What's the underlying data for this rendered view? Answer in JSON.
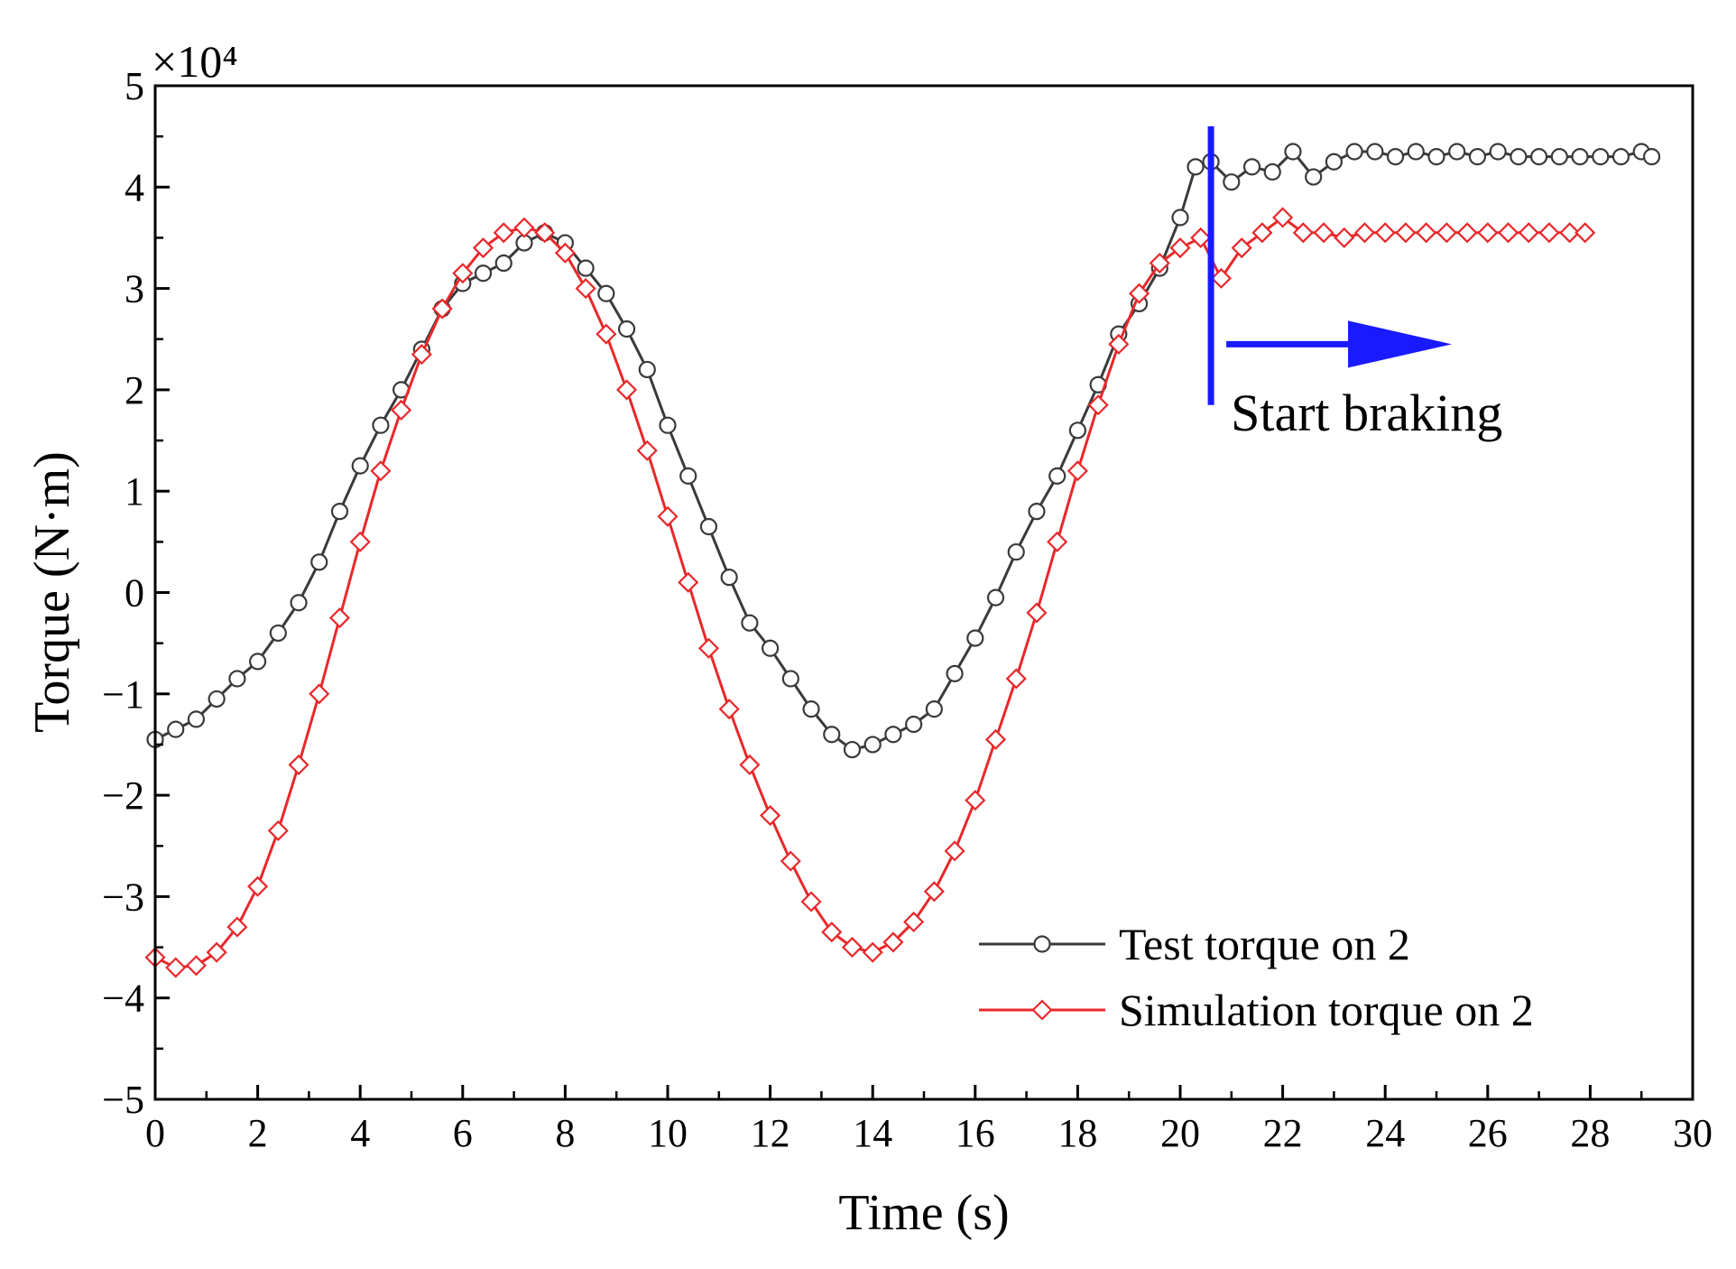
{
  "chart_data": {
    "type": "line",
    "title": "",
    "xlabel": "Time (s)",
    "ylabel": "Torque (N·m)",
    "y_multiplier_label": "×10⁴",
    "xlim": [
      0,
      30
    ],
    "ylim": [
      -5,
      5
    ],
    "x_ticks": [
      0,
      2,
      4,
      6,
      8,
      10,
      12,
      14,
      16,
      18,
      20,
      22,
      24,
      26,
      28,
      30
    ],
    "y_ticks": [
      -5,
      -4,
      -3,
      -2,
      -1,
      0,
      1,
      2,
      3,
      4,
      5
    ],
    "x_tick_labels": [
      "0",
      "2",
      "4",
      "6",
      "8",
      "10",
      "12",
      "14",
      "16",
      "18",
      "20",
      "22",
      "24",
      "26",
      "28",
      "30"
    ],
    "y_tick_labels": [
      "−5",
      "−4",
      "−3",
      "−2",
      "−1",
      "0",
      "1",
      "2",
      "3",
      "4",
      "5"
    ],
    "grid": false,
    "legend_position": "bottom-right",
    "colors": {
      "test": "#3a3a3a",
      "simulation": "#e8282b",
      "annotation": "#1a1aff"
    },
    "series": [
      {
        "name": "Test torque on 2",
        "marker": "circle",
        "x": [
          0.0,
          0.4,
          0.8,
          1.2,
          1.6,
          2.0,
          2.4,
          2.8,
          3.2,
          3.6,
          4.0,
          4.4,
          4.8,
          5.2,
          5.6,
          6.0,
          6.4,
          6.8,
          7.2,
          7.6,
          8.0,
          8.4,
          8.8,
          9.2,
          9.6,
          10.0,
          10.4,
          10.8,
          11.2,
          11.6,
          12.0,
          12.4,
          12.8,
          13.2,
          13.6,
          14.0,
          14.4,
          14.8,
          15.2,
          15.6,
          16.0,
          16.4,
          16.8,
          17.2,
          17.6,
          18.0,
          18.4,
          18.8,
          19.2,
          19.6,
          20.0,
          20.3,
          20.6,
          21.0,
          21.4,
          21.8,
          22.2,
          22.6,
          23.0,
          23.4,
          23.8,
          24.2,
          24.6,
          25.0,
          25.4,
          25.8,
          26.2,
          26.6,
          27.0,
          27.4,
          27.8,
          28.2,
          28.6,
          29.0,
          29.2
        ],
        "y": [
          -1.45,
          -1.35,
          -1.25,
          -1.05,
          -0.85,
          -0.68,
          -0.4,
          -0.1,
          0.3,
          0.8,
          1.25,
          1.65,
          2.0,
          2.4,
          2.8,
          3.05,
          3.15,
          3.25,
          3.45,
          3.55,
          3.45,
          3.2,
          2.95,
          2.6,
          2.2,
          1.65,
          1.15,
          0.65,
          0.15,
          -0.3,
          -0.55,
          -0.85,
          -1.15,
          -1.4,
          -1.55,
          -1.5,
          -1.4,
          -1.3,
          -1.15,
          -0.8,
          -0.45,
          -0.05,
          0.4,
          0.8,
          1.15,
          1.6,
          2.05,
          2.55,
          2.85,
          3.2,
          3.7,
          4.2,
          4.25,
          4.05,
          4.2,
          4.15,
          4.35,
          4.1,
          4.25,
          4.35,
          4.35,
          4.3,
          4.35,
          4.3,
          4.35,
          4.3,
          4.35,
          4.3,
          4.3,
          4.3,
          4.3,
          4.3,
          4.3,
          4.35,
          4.3
        ]
      },
      {
        "name": "Simulation torque on 2",
        "marker": "diamond",
        "x": [
          0.0,
          0.4,
          0.8,
          1.2,
          1.6,
          2.0,
          2.4,
          2.8,
          3.2,
          3.6,
          4.0,
          4.4,
          4.8,
          5.2,
          5.6,
          6.0,
          6.4,
          6.8,
          7.2,
          7.6,
          8.0,
          8.4,
          8.8,
          9.2,
          9.6,
          10.0,
          10.4,
          10.8,
          11.2,
          11.6,
          12.0,
          12.4,
          12.8,
          13.2,
          13.6,
          14.0,
          14.4,
          14.8,
          15.2,
          15.6,
          16.0,
          16.4,
          16.8,
          17.2,
          17.6,
          18.0,
          18.4,
          18.8,
          19.2,
          19.6,
          20.0,
          20.4,
          20.8,
          21.2,
          21.6,
          22.0,
          22.4,
          22.8,
          23.2,
          23.6,
          24.0,
          24.4,
          24.8,
          25.2,
          25.6,
          26.0,
          26.4,
          26.8,
          27.2,
          27.6,
          27.9
        ],
        "y": [
          -3.6,
          -3.7,
          -3.68,
          -3.55,
          -3.3,
          -2.9,
          -2.35,
          -1.7,
          -1.0,
          -0.25,
          0.5,
          1.2,
          1.8,
          2.35,
          2.8,
          3.15,
          3.4,
          3.55,
          3.6,
          3.55,
          3.35,
          3.0,
          2.55,
          2.0,
          1.4,
          0.75,
          0.1,
          -0.55,
          -1.15,
          -1.7,
          -2.2,
          -2.65,
          -3.05,
          -3.35,
          -3.5,
          -3.55,
          -3.45,
          -3.25,
          -2.95,
          -2.55,
          -2.05,
          -1.45,
          -0.85,
          -0.2,
          0.5,
          1.2,
          1.85,
          2.45,
          2.95,
          3.25,
          3.4,
          3.5,
          3.1,
          3.4,
          3.55,
          3.7,
          3.55,
          3.55,
          3.5,
          3.55,
          3.55,
          3.55,
          3.55,
          3.55,
          3.55,
          3.55,
          3.55,
          3.55,
          3.55,
          3.55,
          3.55
        ]
      }
    ],
    "annotation": {
      "text": "Start braking",
      "x": 20.6,
      "y_from": 1.85,
      "y_to": 4.6,
      "arrow_from_x": 20.9,
      "arrow_to_x": 25.3,
      "arrow_y": 2.45
    }
  }
}
